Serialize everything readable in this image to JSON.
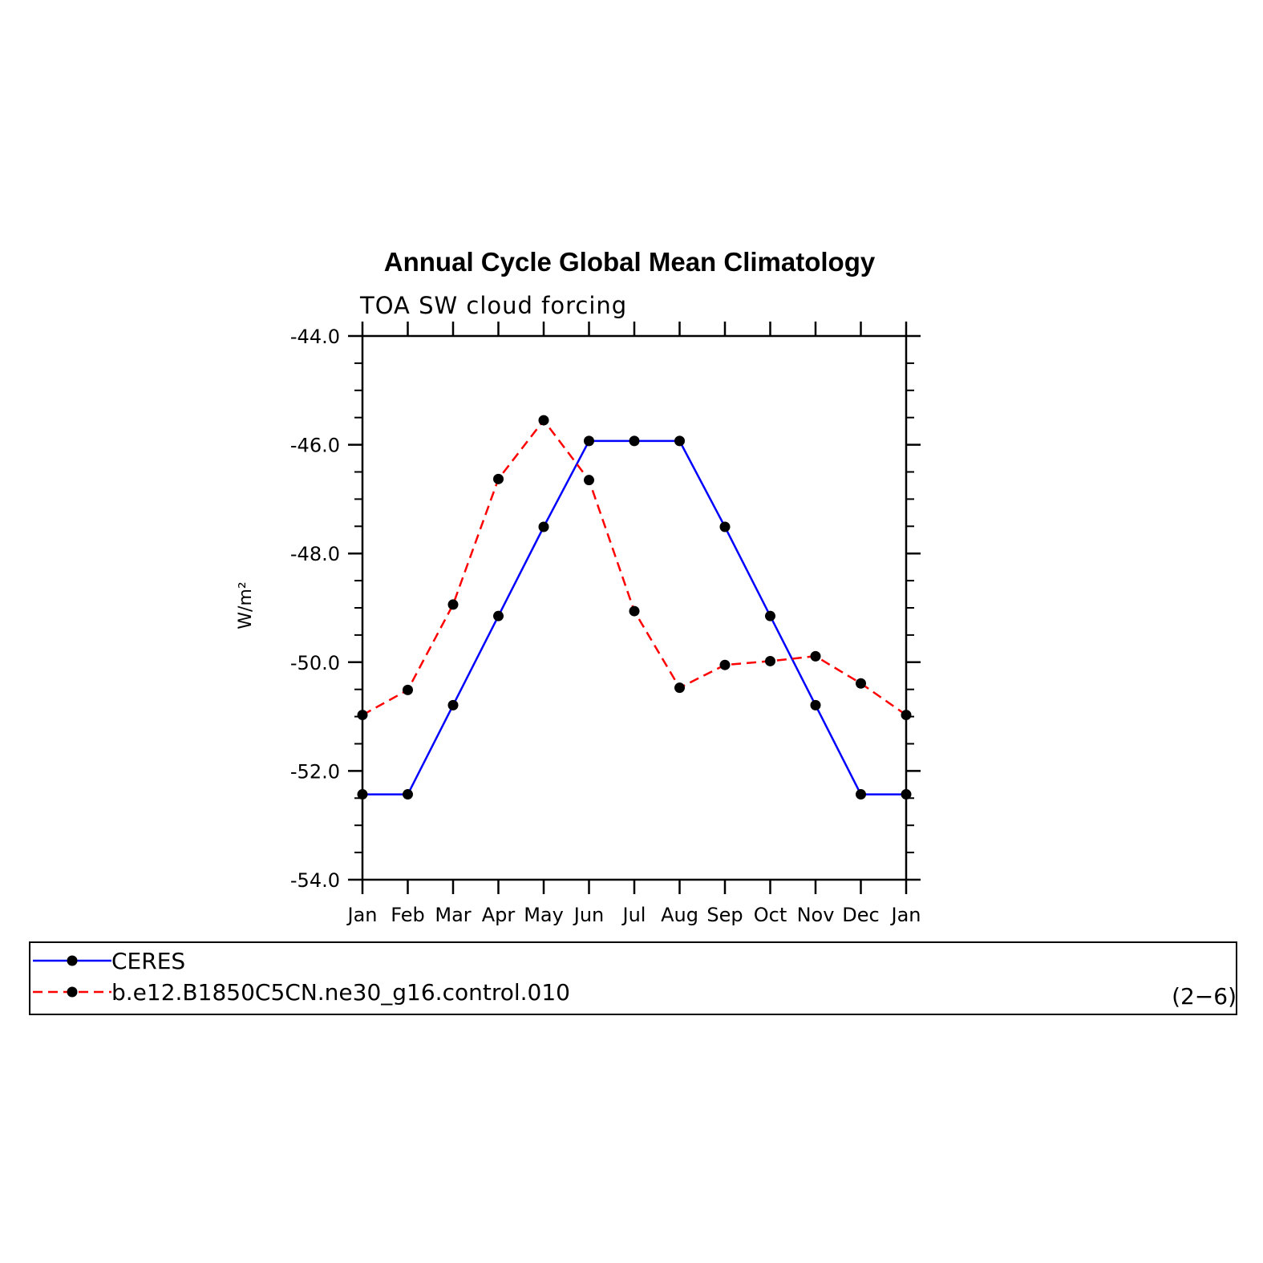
{
  "chart_data": {
    "type": "line",
    "title": "Annual Cycle Global Mean Climatology",
    "subtitle": "TOA SW cloud forcing",
    "ylabel": "W/m²",
    "ylim": [
      -54.0,
      -44.0
    ],
    "yticks": [
      "-54.0",
      "-52.0",
      "-50.0",
      "-48.0",
      "-46.0",
      "-44.0"
    ],
    "ytick_values": [
      -54.0,
      -52.0,
      -50.0,
      -48.0,
      -46.0,
      -44.0
    ],
    "categories": [
      "Jan",
      "Feb",
      "Mar",
      "Apr",
      "May",
      "Jun",
      "Jul",
      "Aug",
      "Sep",
      "Oct",
      "Nov",
      "Dec",
      "Jan"
    ],
    "series": [
      {
        "name": "CERES",
        "color": "#0000ff",
        "dash": "solid",
        "values": [
          -52.43,
          -52.43,
          -50.79,
          -49.15,
          -47.51,
          -45.93,
          -45.93,
          -45.93,
          -47.51,
          -49.15,
          -50.79,
          -52.43,
          -52.43
        ]
      },
      {
        "name": "b.e12.B1850C5CN.ne30_g16.control.010",
        "color": "#ff0000",
        "dash": "dashed",
        "values": [
          -50.97,
          -50.51,
          -48.94,
          -46.63,
          -45.55,
          -46.65,
          -49.06,
          -50.47,
          -50.05,
          -49.98,
          -49.89,
          -50.39,
          -50.97
        ]
      }
    ],
    "grid": false,
    "legend": "bottom",
    "panel_label": "(2−6)"
  }
}
